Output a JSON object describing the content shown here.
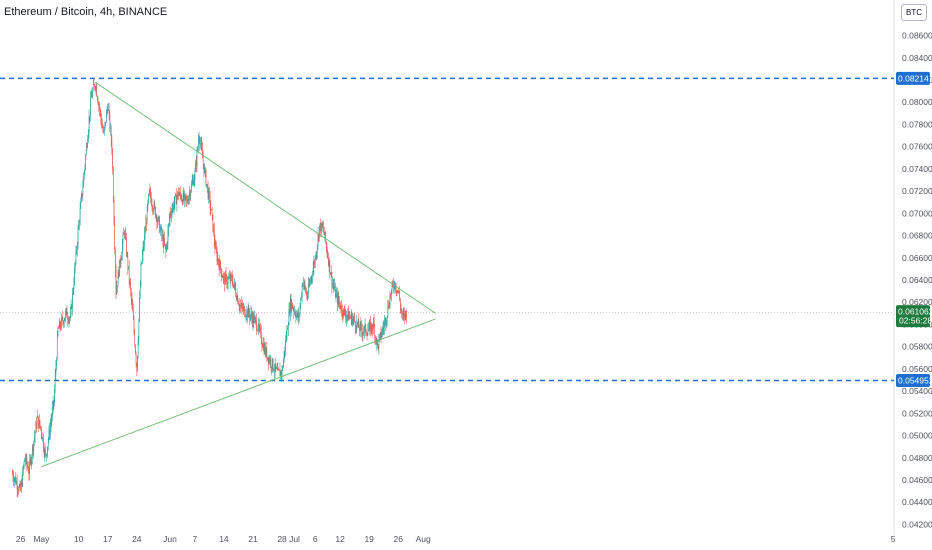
{
  "title": "Ethereum / Bitcoin, 4h, BINANCE",
  "currency_badge": "BTC",
  "colors": {
    "up": "#26a69a",
    "down": "#ef5350",
    "trendline": "#66bb6a",
    "hline": "#1e6fd1",
    "price_badge": "#1f7a3d"
  },
  "chart_data": {
    "type": "candlestick",
    "title": "Ethereum / Bitcoin, 4h, BINANCE",
    "y_axis": {
      "ticks": [
        "0.086000",
        "0.084000",
        "0.082000",
        "0.080000",
        "0.078000",
        "0.076000",
        "0.074000",
        "0.072000",
        "0.070000",
        "0.068000",
        "0.066000",
        "0.064000",
        "0.062000",
        "0.060000",
        "0.058000",
        "0.056000",
        "0.054000",
        "0.052000",
        "0.050000",
        "0.048000",
        "0.046000",
        "0.044000",
        "0.042000"
      ],
      "range": [
        0.0415,
        0.0892
      ]
    },
    "x_axis": {
      "tick_labels": [
        "26",
        "May",
        "10",
        "17",
        "24",
        "Jun",
        "7",
        "14",
        "21",
        "28",
        "Jul",
        "6",
        "12",
        "19",
        "26",
        "Aug",
        "5"
      ]
    },
    "series": [
      {
        "type": "candlestick",
        "path": [
          [
            "Apr 24",
            0.0466
          ],
          [
            "Apr 26",
            0.045
          ],
          [
            "Apr 27",
            0.048
          ],
          [
            "Apr 28",
            0.0468
          ],
          [
            "Apr 30",
            0.0515
          ],
          [
            "May 1",
            0.0505
          ],
          [
            "May 2",
            0.048
          ],
          [
            "May 3",
            0.0505
          ],
          [
            "May 4",
            0.053
          ],
          [
            "May 5",
            0.0595
          ],
          [
            "May 7",
            0.061
          ],
          [
            "May 8",
            0.0605
          ],
          [
            "May 10",
            0.069
          ],
          [
            "May 11",
            0.0725
          ],
          [
            "May 13",
            0.0805
          ],
          [
            "May 14",
            0.0818
          ],
          [
            "May 16",
            0.077
          ],
          [
            "May 17",
            0.0798
          ],
          [
            "May 18",
            0.076
          ],
          [
            "May 19",
            0.063
          ],
          [
            "May 21",
            0.0685
          ],
          [
            "May 23",
            0.061
          ],
          [
            "May 24",
            0.056
          ],
          [
            "May 25",
            0.065
          ],
          [
            "May 27",
            0.0718
          ],
          [
            "May 29",
            0.0695
          ],
          [
            "May 31",
            0.0665
          ],
          [
            "Jun 1",
            0.07
          ],
          [
            "Jun 3",
            0.0718
          ],
          [
            "Jun 5",
            0.071
          ],
          [
            "Jun 7",
            0.0735
          ],
          [
            "Jun 8",
            0.0772
          ],
          [
            "Jun 9",
            0.0745
          ],
          [
            "Jun 11",
            0.07
          ],
          [
            "Jun 12",
            0.0665
          ],
          [
            "Jun 14",
            0.064
          ],
          [
            "Jun 16",
            0.064
          ],
          [
            "Jun 18",
            0.0615
          ],
          [
            "Jun 20",
            0.061
          ],
          [
            "Jun 22",
            0.06
          ],
          [
            "Jun 24",
            0.0575
          ],
          [
            "Jun 27",
            0.0555
          ],
          [
            "Jun 28",
            0.0558
          ],
          [
            "Jun 30",
            0.062
          ],
          [
            "Jul 2",
            0.0605
          ],
          [
            "Jul 3",
            0.064
          ],
          [
            "Jul 4",
            0.0625
          ],
          [
            "Jul 6",
            0.066
          ],
          [
            "Jul 7",
            0.0688
          ],
          [
            "Jul 8",
            0.0685
          ],
          [
            "Jul 10",
            0.064
          ],
          [
            "Jul 11",
            0.0625
          ],
          [
            "Jul 13",
            0.061
          ],
          [
            "Jul 15",
            0.0605
          ],
          [
            "Jul 17",
            0.0595
          ],
          [
            "Jul 19",
            0.0595
          ],
          [
            "Jul 20",
            0.06
          ],
          [
            "Jul 21",
            0.058
          ],
          [
            "Jul 23",
            0.0605
          ],
          [
            "Jul 24",
            0.0625
          ],
          [
            "Jul 25",
            0.0638
          ],
          [
            "Jul 26",
            0.063
          ],
          [
            "Jul 27",
            0.0605
          ],
          [
            "Jul 28",
            0.0611
          ]
        ]
      }
    ],
    "trendlines": [
      {
        "name": "upper",
        "from": [
          "May 14",
          0.0818
        ],
        "to": [
          "Aug 4",
          0.061
        ]
      },
      {
        "name": "lower",
        "from": [
          "May 1",
          0.0472
        ],
        "to": [
          "Aug 4",
          0.0605
        ]
      }
    ],
    "horizontal_lines": [
      {
        "value": 0.082141,
        "label": "0.082141"
      },
      {
        "value": 0.054952,
        "label": "0.054952"
      }
    ],
    "current_price": {
      "value": 0.061062,
      "label": "0.061062",
      "countdown": "02:56:28"
    }
  }
}
